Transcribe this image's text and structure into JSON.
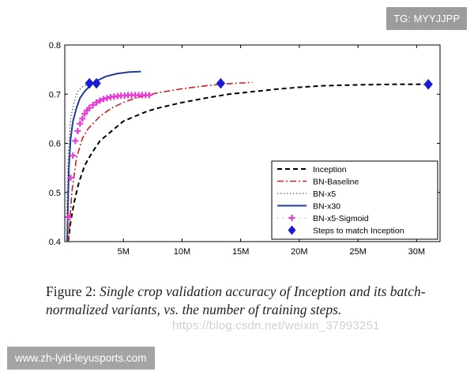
{
  "chart_data": {
    "type": "line",
    "title": "",
    "xlabel": "",
    "ylabel": "",
    "xlim": [
      0,
      32
    ],
    "ylim": [
      0.4,
      0.8
    ],
    "grid": false,
    "legend_position": "bottom-right",
    "x_ticks": [
      5,
      10,
      15,
      20,
      25,
      30
    ],
    "x_tick_labels": [
      "5M",
      "10M",
      "15M",
      "20M",
      "25M",
      "30M"
    ],
    "y_ticks": [
      0.4,
      0.5,
      0.6,
      0.7,
      0.8
    ],
    "y_tick_labels": [
      "0.4",
      "0.5",
      "0.6",
      "0.7",
      "0.8"
    ],
    "series": [
      {
        "name": "Inception",
        "style": "dashed",
        "color": "#000000",
        "x": [
          0.3,
          0.5,
          0.8,
          1.2,
          1.7,
          2.3,
          3.0,
          4.0,
          5.0,
          6.0,
          7.0,
          8.0,
          10.0,
          12.0,
          14.0,
          16.0,
          18.0,
          20.0,
          22.0,
          25.0,
          28.0,
          31.0
        ],
        "y": [
          0.4,
          0.44,
          0.48,
          0.52,
          0.555,
          0.58,
          0.605,
          0.625,
          0.645,
          0.655,
          0.665,
          0.672,
          0.683,
          0.692,
          0.7,
          0.705,
          0.71,
          0.714,
          0.717,
          0.719,
          0.72,
          0.72
        ]
      },
      {
        "name": "BN-Baseline",
        "style": "dashdot",
        "color": "#cc2222",
        "x": [
          0.3,
          0.6,
          1.0,
          1.5,
          2.0,
          3.0,
          4.0,
          5.0,
          6.0,
          7.0,
          8.0,
          9.0,
          10.0,
          11.0,
          12.0,
          13.3,
          14.5,
          16.0
        ],
        "y": [
          0.4,
          0.5,
          0.57,
          0.61,
          0.63,
          0.655,
          0.672,
          0.683,
          0.692,
          0.698,
          0.703,
          0.707,
          0.711,
          0.714,
          0.717,
          0.72,
          0.722,
          0.724
        ]
      },
      {
        "name": "BN-x5",
        "style": "dotted",
        "color": "#777777",
        "x": [
          0.15,
          0.3,
          0.5,
          0.8,
          1.1,
          1.5,
          2.0
        ],
        "y": [
          0.45,
          0.58,
          0.65,
          0.685,
          0.705,
          0.715,
          0.72
        ]
      },
      {
        "name": "BN-x30",
        "style": "solid",
        "color": "#1f3d99",
        "x": [
          0.2,
          0.35,
          0.5,
          0.7,
          1.0,
          1.3,
          1.7,
          2.2,
          2.8,
          3.5,
          4.5,
          5.5,
          6.5
        ],
        "y": [
          0.4,
          0.55,
          0.61,
          0.645,
          0.672,
          0.692,
          0.706,
          0.718,
          0.728,
          0.736,
          0.742,
          0.745,
          0.746
        ]
      },
      {
        "name": "BN-x5-Sigmoid",
        "style": "markers",
        "color": "#e63ad6",
        "x": [
          0.3,
          0.5,
          0.7,
          0.9,
          1.1,
          1.3,
          1.5,
          1.7,
          1.9,
          2.1,
          2.4,
          2.7,
          3.0,
          3.3,
          3.6,
          3.9,
          4.2,
          4.5,
          4.8,
          5.1,
          5.4,
          5.7,
          6.0,
          6.3,
          6.6,
          6.9,
          7.2
        ],
        "y": [
          0.45,
          0.53,
          0.575,
          0.605,
          0.625,
          0.64,
          0.65,
          0.66,
          0.667,
          0.672,
          0.678,
          0.683,
          0.687,
          0.69,
          0.692,
          0.694,
          0.695,
          0.696,
          0.697,
          0.697,
          0.698,
          0.698,
          0.698,
          0.698,
          0.698,
          0.698,
          0.698
        ]
      },
      {
        "name": "Steps to match Inception",
        "style": "diamond",
        "color": "#1a1ad6",
        "x": [
          2.1,
          2.7,
          13.3,
          31.0
        ],
        "y": [
          0.722,
          0.722,
          0.722,
          0.72
        ]
      }
    ]
  },
  "caption": {
    "lead": "Figure 2:",
    "body": "Single crop validation accuracy of Inception and its batch-normalized variants, vs.  the number of training steps."
  },
  "watermark": "https://blog.csdn.net/weixin_37993251",
  "tag_top_right": "TG: MYYJJPP",
  "tag_bottom_left": "www.zh-lyid-leyusports.com"
}
